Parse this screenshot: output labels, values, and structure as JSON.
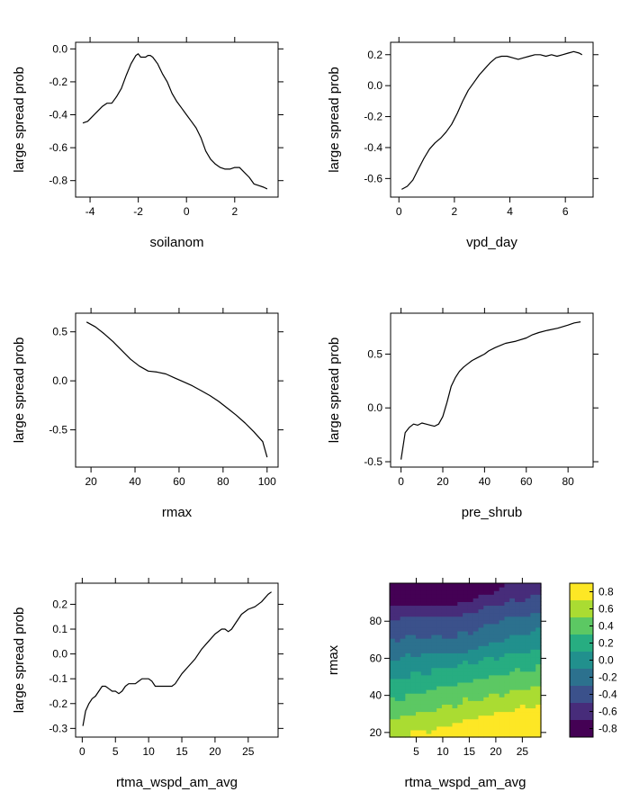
{
  "chart_data": [
    {
      "type": "line",
      "xlabel": "soilanom",
      "ylabel": "large spread prob",
      "xlim": [
        -4.6,
        3.8
      ],
      "ylim": [
        -0.9,
        0.04
      ],
      "xticks": [
        -4,
        -2,
        0,
        2
      ],
      "xtick_labels": [
        "-4",
        "-2",
        "0",
        "2"
      ],
      "yticks": [
        0.0,
        -0.2,
        -0.4,
        -0.6,
        -0.8
      ],
      "ytick_labels": [
        "0.0",
        "-0.2",
        "-0.4",
        "-0.6",
        "-0.8"
      ],
      "grid": false,
      "series": [
        {
          "x": [
            -4.3,
            -4.1,
            -3.9,
            -3.7,
            -3.5,
            -3.3,
            -3.1,
            -2.9,
            -2.7,
            -2.5,
            -2.3,
            -2.1,
            -2.0,
            -1.9,
            -1.8,
            -1.7,
            -1.6,
            -1.5,
            -1.4,
            -1.3,
            -1.2,
            -1.0,
            -0.8,
            -0.6,
            -0.4,
            -0.2,
            0.0,
            0.2,
            0.4,
            0.6,
            0.8,
            1.0,
            1.2,
            1.4,
            1.6,
            1.8,
            2.0,
            2.2,
            2.4,
            2.6,
            2.8,
            3.0,
            3.2,
            3.35
          ],
          "y": [
            -0.45,
            -0.44,
            -0.41,
            -0.38,
            -0.35,
            -0.33,
            -0.33,
            -0.29,
            -0.24,
            -0.16,
            -0.09,
            -0.04,
            -0.03,
            -0.05,
            -0.05,
            -0.05,
            -0.04,
            -0.04,
            -0.05,
            -0.07,
            -0.09,
            -0.15,
            -0.2,
            -0.27,
            -0.32,
            -0.36,
            -0.4,
            -0.44,
            -0.48,
            -0.54,
            -0.62,
            -0.67,
            -0.7,
            -0.72,
            -0.73,
            -0.73,
            -0.72,
            -0.72,
            -0.75,
            -0.78,
            -0.82,
            -0.83,
            -0.84,
            -0.85
          ]
        }
      ]
    },
    {
      "type": "line",
      "xlabel": "vpd_day",
      "ylabel": "large spread prob",
      "xlim": [
        -0.3,
        7.0
      ],
      "ylim": [
        -0.72,
        0.28
      ],
      "xticks": [
        0,
        2,
        4,
        6
      ],
      "xtick_labels": [
        "0",
        "2",
        "4",
        "6"
      ],
      "yticks": [
        0.2,
        0.0,
        -0.2,
        -0.4,
        -0.6
      ],
      "ytick_labels": [
        "0.2",
        "0.0",
        "-0.2",
        "-0.4",
        "-0.6"
      ],
      "grid": false,
      "series": [
        {
          "x": [
            0.1,
            0.3,
            0.5,
            0.7,
            0.9,
            1.1,
            1.3,
            1.5,
            1.7,
            1.9,
            2.1,
            2.3,
            2.5,
            2.7,
            2.9,
            3.1,
            3.3,
            3.5,
            3.7,
            3.9,
            4.1,
            4.3,
            4.5,
            4.7,
            4.9,
            5.1,
            5.3,
            5.5,
            5.7,
            5.9,
            6.1,
            6.3,
            6.5,
            6.6
          ],
          "y": [
            -0.67,
            -0.65,
            -0.61,
            -0.54,
            -0.47,
            -0.41,
            -0.37,
            -0.34,
            -0.3,
            -0.25,
            -0.18,
            -0.1,
            -0.03,
            0.02,
            0.07,
            0.11,
            0.15,
            0.18,
            0.19,
            0.19,
            0.18,
            0.17,
            0.18,
            0.19,
            0.2,
            0.2,
            0.19,
            0.2,
            0.19,
            0.2,
            0.21,
            0.22,
            0.21,
            0.2
          ]
        }
      ]
    },
    {
      "type": "line",
      "xlabel": "rmax",
      "ylabel": "large spread prob",
      "xlim": [
        13,
        105
      ],
      "ylim": [
        -0.88,
        0.69
      ],
      "xticks": [
        20,
        40,
        60,
        80,
        100
      ],
      "xtick_labels": [
        "20",
        "40",
        "60",
        "80",
        "100"
      ],
      "yticks": [
        0.5,
        0.0,
        -0.5
      ],
      "ytick_labels": [
        "0.5",
        "0.0",
        "-0.5"
      ],
      "grid": false,
      "series": [
        {
          "x": [
            18,
            22,
            26,
            30,
            34,
            38,
            42,
            46,
            50,
            54,
            58,
            62,
            66,
            70,
            74,
            78,
            82,
            86,
            90,
            94,
            98,
            100
          ],
          "y": [
            0.6,
            0.55,
            0.48,
            0.4,
            0.31,
            0.22,
            0.15,
            0.1,
            0.09,
            0.07,
            0.03,
            -0.01,
            -0.05,
            -0.1,
            -0.15,
            -0.21,
            -0.28,
            -0.35,
            -0.43,
            -0.52,
            -0.62,
            -0.78
          ]
        }
      ]
    },
    {
      "type": "line",
      "xlabel": "pre_shrub",
      "ylabel": "large spread prob",
      "xlim": [
        -5,
        92
      ],
      "ylim": [
        -0.55,
        0.88
      ],
      "xticks": [
        0,
        20,
        40,
        60,
        80
      ],
      "xtick_labels": [
        "0",
        "20",
        "40",
        "60",
        "80"
      ],
      "yticks": [
        0.5,
        0.0,
        -0.5
      ],
      "ytick_labels": [
        "0.5",
        "0.0",
        "-0.5"
      ],
      "grid": false,
      "series": [
        {
          "x": [
            0,
            2,
            4,
            6,
            8,
            10,
            12,
            14,
            16,
            18,
            20,
            22,
            24,
            26,
            28,
            30,
            32,
            34,
            36,
            38,
            40,
            42,
            45,
            50,
            55,
            60,
            63,
            66,
            70,
            75,
            80,
            83,
            86
          ],
          "y": [
            -0.48,
            -0.23,
            -0.18,
            -0.15,
            -0.16,
            -0.14,
            -0.15,
            -0.16,
            -0.17,
            -0.15,
            -0.08,
            0.05,
            0.2,
            0.28,
            0.34,
            0.38,
            0.41,
            0.44,
            0.46,
            0.48,
            0.5,
            0.53,
            0.56,
            0.6,
            0.62,
            0.65,
            0.68,
            0.7,
            0.72,
            0.74,
            0.77,
            0.79,
            0.8
          ]
        }
      ]
    },
    {
      "type": "line",
      "xlabel": "rtma_wspd_am_avg",
      "ylabel": "large spread prob",
      "xlim": [
        -1,
        29.5
      ],
      "ylim": [
        -0.335,
        0.285
      ],
      "xticks": [
        0,
        5,
        10,
        15,
        20,
        25
      ],
      "xtick_labels": [
        "0",
        "5",
        "10",
        "15",
        "20",
        "25"
      ],
      "yticks": [
        0.2,
        0.1,
        0.0,
        -0.1,
        -0.2,
        -0.3
      ],
      "ytick_labels": [
        "0.2",
        "0.1",
        "0.0",
        "-0.1",
        "-0.2",
        "-0.3"
      ],
      "grid": false,
      "series": [
        {
          "x": [
            0.1,
            0.5,
            1,
            1.5,
            2,
            2.5,
            3,
            3.5,
            4,
            4.5,
            5,
            5.5,
            6,
            6.5,
            7,
            7.5,
            8,
            8.5,
            9,
            9.5,
            10,
            10.5,
            11,
            11.5,
            12,
            12.5,
            13,
            13.5,
            14,
            15,
            16,
            17,
            18,
            19,
            20,
            21,
            21.5,
            22,
            22.5,
            23,
            24,
            25,
            26,
            27,
            28,
            28.5
          ],
          "y": [
            -0.29,
            -0.23,
            -0.2,
            -0.18,
            -0.17,
            -0.15,
            -0.13,
            -0.13,
            -0.14,
            -0.15,
            -0.15,
            -0.16,
            -0.15,
            -0.13,
            -0.12,
            -0.12,
            -0.12,
            -0.11,
            -0.1,
            -0.1,
            -0.1,
            -0.11,
            -0.13,
            -0.13,
            -0.13,
            -0.13,
            -0.13,
            -0.13,
            -0.12,
            -0.08,
            -0.05,
            -0.02,
            0.02,
            0.05,
            0.08,
            0.1,
            0.1,
            0.09,
            0.1,
            0.12,
            0.16,
            0.18,
            0.19,
            0.21,
            0.24,
            0.25
          ]
        }
      ]
    },
    {
      "type": "heatmap",
      "xlabel": "rtma_wspd_am_avg",
      "ylabel": "rmax",
      "xlim": [
        0,
        28.5
      ],
      "ylim": [
        17.5,
        100.5
      ],
      "xticks": [
        5,
        10,
        15,
        20,
        25
      ],
      "xtick_labels": [
        "5",
        "10",
        "15",
        "20",
        "25"
      ],
      "yticks": [
        20,
        40,
        60,
        80
      ],
      "ytick_labels": [
        "20",
        "40",
        "60",
        "80"
      ],
      "colorbar": {
        "levels": [
          -0.9,
          -0.8,
          -0.7,
          -0.6,
          -0.5,
          -0.4,
          -0.3,
          -0.2,
          -0.1,
          0.0,
          0.1,
          0.2,
          0.3,
          0.4,
          0.5,
          0.6,
          0.7,
          0.8,
          0.9
        ],
        "colors": [
          "#440154",
          "#472c7a",
          "#3b518b",
          "#2c718e",
          "#21908d",
          "#27ad81",
          "#5cc863",
          "#aadc32",
          "#fde725"
        ],
        "tick_values": [
          0.8,
          0.6,
          0.4,
          0.2,
          0.0,
          -0.2,
          -0.4,
          -0.6,
          -0.8
        ],
        "tick_labels": [
          "0.8",
          "0.6",
          "0.4",
          "0.2",
          "0.0",
          "-0.2",
          "-0.4",
          "-0.6",
          "-0.8"
        ]
      }
    }
  ]
}
